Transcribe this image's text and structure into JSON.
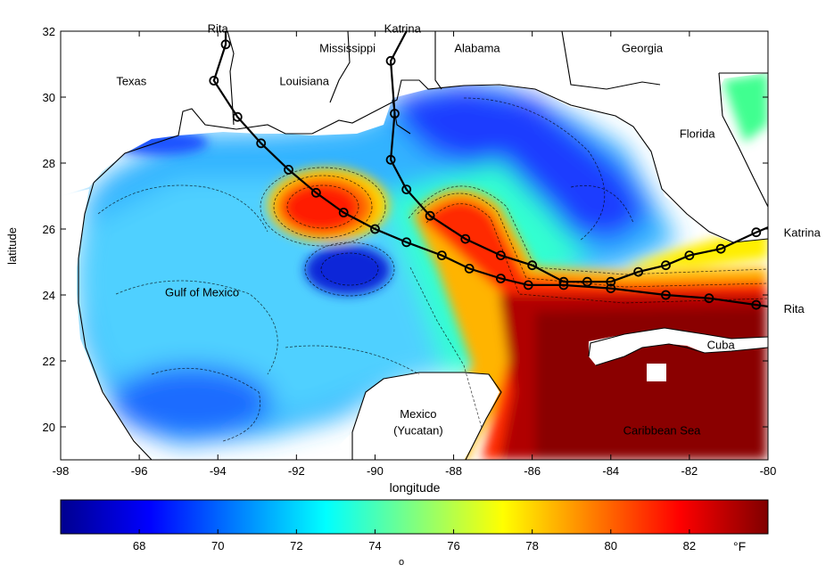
{
  "chart_data": {
    "type": "heatmap",
    "xlabel": "longitude",
    "ylabel": "latitude",
    "xlim": [
      -98,
      -80
    ],
    "ylim": [
      19,
      32
    ],
    "x_ticks": [
      -98,
      -96,
      -94,
      -92,
      -90,
      -88,
      -86,
      -84,
      -82,
      -80
    ],
    "x_tick_labels": [
      "-98",
      "-96",
      "-94",
      "-92",
      "-90",
      "-88",
      "-86",
      "-84",
      "-82",
      "-80"
    ],
    "y_ticks": [
      20,
      22,
      24,
      26,
      28,
      30,
      32
    ],
    "y_tick_labels": [
      "20",
      "22",
      "24",
      "26",
      "28",
      "30",
      "32"
    ],
    "grid": false,
    "colorbar": {
      "range": [
        66,
        84
      ],
      "ticks": [
        68,
        70,
        72,
        74,
        76,
        78,
        80,
        82
      ],
      "tick_labels": [
        "68",
        "70",
        "72",
        "74",
        "76",
        "78",
        "80",
        "82"
      ],
      "unit_label": "°F",
      "degree_mark": "o",
      "colormap": "jet",
      "colors": [
        "#00008f",
        "#0000ff",
        "#00ffff",
        "#ffff00",
        "#ff0000",
        "#800000"
      ]
    },
    "place_labels": [
      {
        "text": "Texas",
        "lon": -96.2,
        "lat": 30.5
      },
      {
        "text": "Louisiana",
        "lon": -91.8,
        "lat": 30.5
      },
      {
        "text": "Mississippi",
        "lon": -90.7,
        "lat": 31.5
      },
      {
        "text": "Alabama",
        "lon": -87.4,
        "lat": 31.5
      },
      {
        "text": "Georgia",
        "lon": -83.2,
        "lat": 31.5
      },
      {
        "text": "Florida",
        "lon": -81.8,
        "lat": 28.9
      },
      {
        "text": "Gulf of Mexico",
        "lon": -94.4,
        "lat": 24.1
      },
      {
        "text": "Mexico",
        "lon": -88.9,
        "lat": 20.4
      },
      {
        "text": "(Yucatan)",
        "lon": -88.9,
        "lat": 19.9
      },
      {
        "text": "Cuba",
        "lon": -81.2,
        "lat": 22.5
      },
      {
        "text": "Caribbean Sea",
        "lon": -82.7,
        "lat": 19.9
      }
    ],
    "series": [
      {
        "name": "Rita",
        "name_position": {
          "lon": -94.0,
          "lat": 32.1
        },
        "points": [
          {
            "lon": -80.3,
            "lat": 23.7
          },
          {
            "lon": -81.5,
            "lat": 23.9
          },
          {
            "lon": -82.6,
            "lat": 24.0
          },
          {
            "lon": -84.0,
            "lat": 24.2
          },
          {
            "lon": -85.2,
            "lat": 24.3
          },
          {
            "lon": -86.1,
            "lat": 24.3
          },
          {
            "lon": -86.8,
            "lat": 24.5
          },
          {
            "lon": -87.6,
            "lat": 24.8
          },
          {
            "lon": -88.3,
            "lat": 25.2
          },
          {
            "lon": -89.2,
            "lat": 25.6
          },
          {
            "lon": -90.0,
            "lat": 26.0
          },
          {
            "lon": -90.8,
            "lat": 26.5
          },
          {
            "lon": -91.5,
            "lat": 27.1
          },
          {
            "lon": -92.2,
            "lat": 27.8
          },
          {
            "lon": -92.9,
            "lat": 28.6
          },
          {
            "lon": -93.5,
            "lat": 29.4
          },
          {
            "lon": -94.1,
            "lat": 30.5
          },
          {
            "lon": -93.8,
            "lat": 31.6
          }
        ],
        "line_extension": {
          "lon": -93.8,
          "lat": 32.0
        }
      },
      {
        "name": "Katrina",
        "name_position": {
          "lon": -89.3,
          "lat": 32.1
        },
        "points": [
          {
            "lon": -80.3,
            "lat": 25.9
          },
          {
            "lon": -81.2,
            "lat": 25.4
          },
          {
            "lon": -82.0,
            "lat": 25.2
          },
          {
            "lon": -82.6,
            "lat": 24.9
          },
          {
            "lon": -83.3,
            "lat": 24.7
          },
          {
            "lon": -84.0,
            "lat": 24.4
          },
          {
            "lon": -84.6,
            "lat": 24.4
          },
          {
            "lon": -85.2,
            "lat": 24.4
          },
          {
            "lon": -86.0,
            "lat": 24.9
          },
          {
            "lon": -86.8,
            "lat": 25.2
          },
          {
            "lon": -87.7,
            "lat": 25.7
          },
          {
            "lon": -88.6,
            "lat": 26.4
          },
          {
            "lon": -89.2,
            "lat": 27.2
          },
          {
            "lon": -89.6,
            "lat": 28.1
          },
          {
            "lon": -89.5,
            "lat": 29.5
          },
          {
            "lon": -89.6,
            "lat": 31.1
          }
        ],
        "line_extension": {
          "lon": -89.2,
          "lat": 32.0
        },
        "end_label": {
          "text": "Katrina",
          "lon": -79.6,
          "lat": 25.9
        }
      }
    ],
    "rita_end_label": {
      "text": "Rita",
      "lon": -79.6,
      "lat": 23.6
    }
  }
}
